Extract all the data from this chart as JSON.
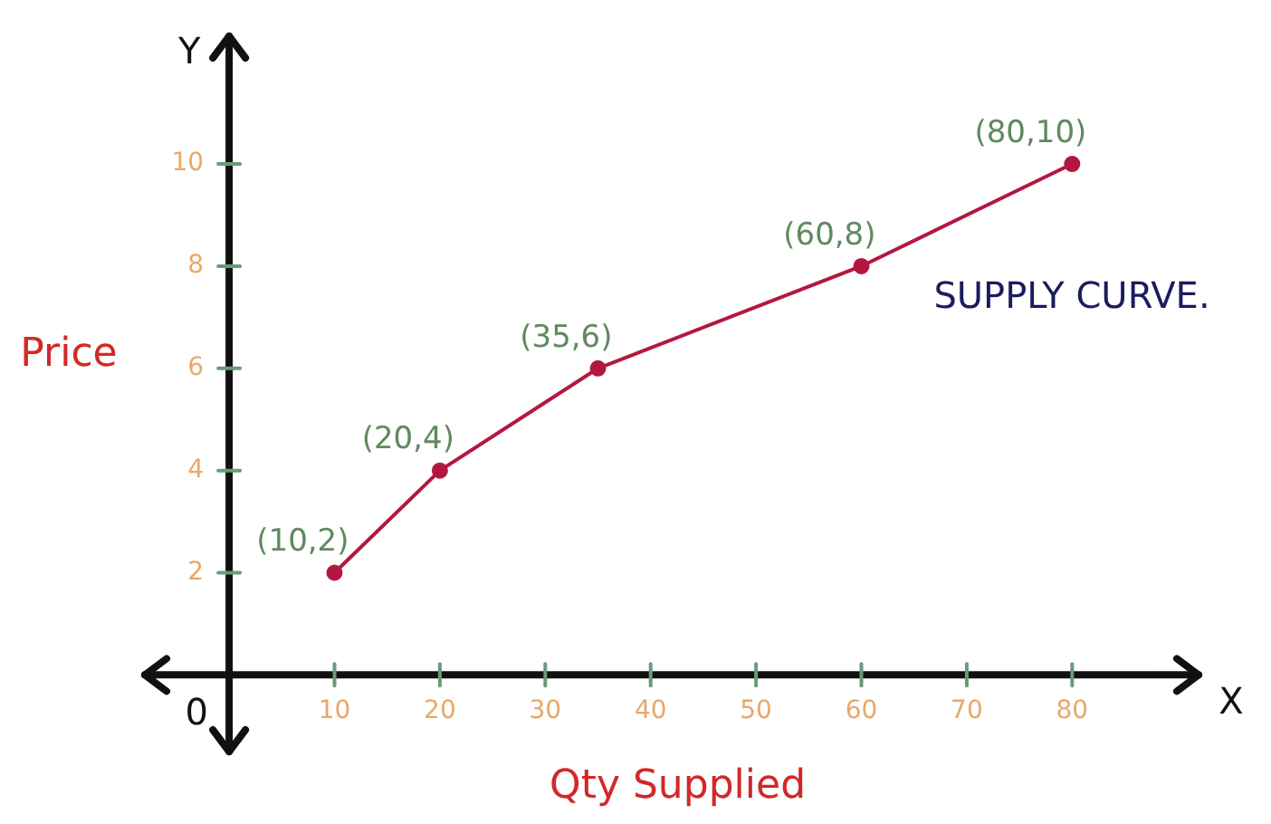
{
  "chart_data": {
    "type": "line",
    "xlabel": "Qty Supplied",
    "ylabel": "Price",
    "x": [
      10,
      20,
      35,
      60,
      80
    ],
    "series": [
      {
        "color": "#b3173f",
        "values": [
          2,
          4,
          6,
          8,
          10
        ]
      }
    ],
    "xlim": [
      -8,
      92
    ],
    "ylim": [
      -1.5,
      12.5
    ],
    "xticks": [
      10,
      20,
      30,
      40,
      50,
      60,
      70,
      80
    ],
    "yticks": [
      2,
      4,
      6,
      8,
      10
    ],
    "marker": "circle",
    "grid": false,
    "legend": false,
    "annotations": [
      "Y",
      "X",
      "0",
      "SUPPLY CURVE.",
      {
        "text": "(10,2)",
        "x": 10,
        "y": 2
      },
      {
        "text": "(20,4)",
        "x": 20,
        "y": 4
      },
      {
        "text": "(35,6)",
        "x": 35,
        "y": 6
      },
      {
        "text": "(60,8)",
        "x": 60,
        "y": 8
      },
      {
        "text": "(80,10)",
        "x": 80,
        "y": 10
      }
    ]
  }
}
